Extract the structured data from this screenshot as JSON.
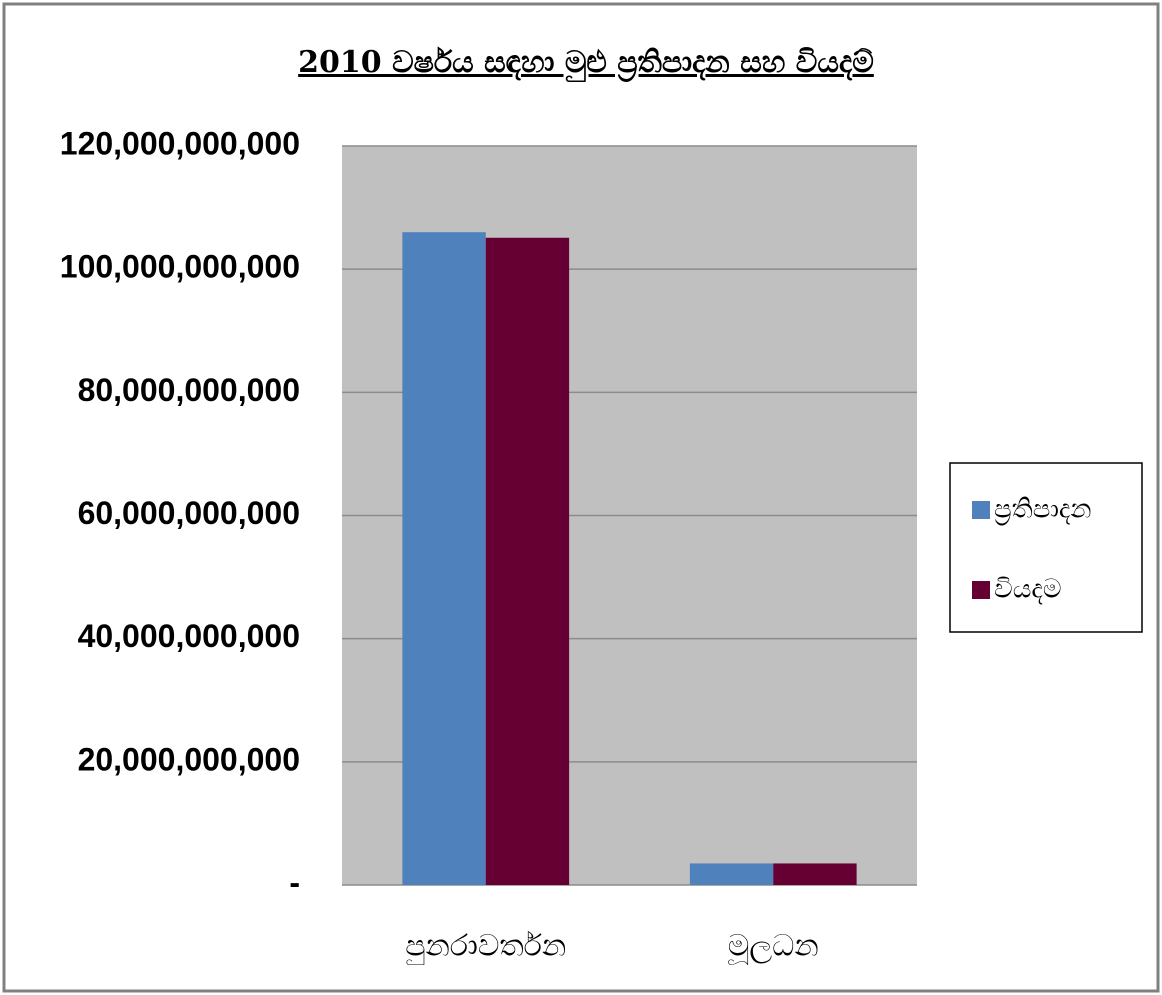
{
  "chart_data": {
    "type": "bar",
    "title": "2010 වර්ෂය සඳහා මුළු ප්‍රතිපාදන සහ වියදම්",
    "categories": [
      "පුනරාවර්තන",
      "මූලධන"
    ],
    "series": [
      {
        "name": "ප්‍රතිපාදන",
        "color": "#4f81bd",
        "values": [
          106000000000,
          3500000000
        ]
      },
      {
        "name": "වියදම",
        "color": "#660033",
        "values": [
          105100000000,
          3500000000
        ]
      }
    ],
    "ylim": [
      0,
      120000000000
    ],
    "yticks": [
      {
        "value": 0,
        "label": "-"
      },
      {
        "value": 20000000000,
        "label": "20,000,000,000"
      },
      {
        "value": 40000000000,
        "label": "40,000,000,000"
      },
      {
        "value": 60000000000,
        "label": "60,000,000,000"
      },
      {
        "value": 80000000000,
        "label": "80,000,000,000"
      },
      {
        "value": 100000000000,
        "label": "100,000,000,000"
      },
      {
        "value": 120000000000,
        "label": "120,000,000,000"
      }
    ],
    "grid": true,
    "legend": "right"
  }
}
